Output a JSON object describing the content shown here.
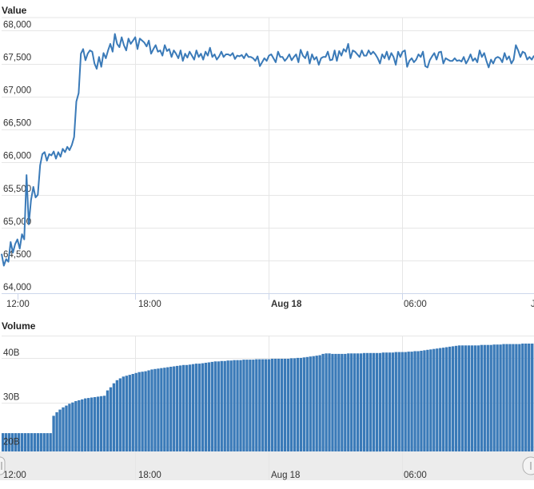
{
  "chart_data": [
    {
      "type": "line",
      "title": "Value",
      "ylim": [
        64000,
        68200
      ],
      "y_ticks": [
        64000,
        64500,
        65000,
        65500,
        66000,
        66500,
        67000,
        67500,
        68000
      ],
      "y_tick_labels": [
        "64,000",
        "64,500",
        "65,000",
        "65,500",
        "66,000",
        "66,500",
        "67,000",
        "67,500",
        "68,000"
      ],
      "x_tick_labels": [
        {
          "label": "12:00",
          "bold": false
        },
        {
          "label": "18:00",
          "bold": false
        },
        {
          "label": "Aug 18",
          "bold": true
        },
        {
          "label": "06:00",
          "bold": false
        },
        {
          "label": "J",
          "bold": false
        }
      ],
      "color": "#3a7ab8",
      "grid": true,
      "y": [
        64600,
        64420,
        64520,
        64480,
        64780,
        64620,
        64750,
        64820,
        64680,
        64900,
        64820,
        65800,
        65050,
        65420,
        65620,
        65460,
        65500,
        65950,
        66120,
        66150,
        66020,
        66120,
        66100,
        66160,
        66050,
        66150,
        66080,
        66200,
        66150,
        66230,
        66180,
        66260,
        66380,
        66920,
        67050,
        67650,
        67720,
        67550,
        67650,
        67700,
        67680,
        67500,
        67420,
        67600,
        67450,
        67660,
        67580,
        67700,
        67800,
        67680,
        67950,
        67800,
        67750,
        67900,
        67780,
        67700,
        67880,
        67800,
        67850,
        67900,
        67720,
        67880,
        67850,
        67820,
        67760,
        67850,
        67650,
        67720,
        67780,
        67680,
        67700,
        67620,
        67780,
        67690,
        67720,
        67600,
        67700,
        67650,
        67580,
        67700,
        67540,
        67650,
        67590,
        67680,
        67620,
        67560,
        67700,
        67600,
        67650,
        67560,
        67680,
        67620,
        67740,
        67600,
        67640,
        67560,
        67610,
        67680,
        67600,
        67640,
        67640,
        67620,
        67660,
        67570,
        67620,
        67610,
        67630,
        67580,
        67650,
        67600,
        67600,
        67580,
        67540,
        67610,
        67460,
        67520,
        67580,
        67540,
        67620,
        67640,
        67580,
        67520,
        67680,
        67600,
        67600,
        67540,
        67580,
        67640,
        67550,
        67600,
        67640,
        67520,
        67710,
        67620,
        67580,
        67680,
        67500,
        67640,
        67560,
        67600,
        67480,
        67580,
        67600,
        67600,
        67680,
        67550,
        67560,
        67700,
        67540,
        67690,
        67620,
        67720,
        67680,
        67800,
        67580,
        67700,
        67680,
        67640,
        67600,
        67700,
        67620,
        67620,
        67700,
        67640,
        67680,
        67640,
        67580,
        67500,
        67640,
        67580,
        67680,
        67560,
        67660,
        67600,
        67480,
        67680,
        67600,
        67680,
        67700,
        67450,
        67540,
        67580,
        67520,
        67560,
        67640,
        67600,
        67680,
        67460,
        67440,
        67550,
        67610,
        67660,
        67560,
        67670,
        67680,
        67500,
        67580,
        67560,
        67540,
        67540,
        67580,
        67540,
        67550,
        67530,
        67600,
        67500,
        67560,
        67640,
        67540,
        67580,
        67520,
        67700,
        67600,
        67660,
        67540,
        67440,
        67560,
        67500,
        67580,
        67600,
        67580,
        67520,
        67660,
        67560,
        67610,
        67500,
        67560,
        67780,
        67700,
        67600,
        67680,
        67660,
        67560,
        67600,
        67560,
        67620
      ]
    },
    {
      "type": "bar",
      "title": "Volume",
      "ylim": [
        19000,
        45000
      ],
      "y_ticks": [
        20000,
        30000,
        40000
      ],
      "y_tick_labels": [
        "20B",
        "30B",
        "40B"
      ],
      "x_tick_labels": [
        "12:00",
        "18:00",
        "Aug 18",
        "06:00"
      ],
      "color": "#3a7ab8",
      "grid": true,
      "values": [
        23100,
        23100,
        23100,
        23100,
        23100,
        23100,
        23100,
        23100,
        23100,
        23100,
        23100,
        23100,
        23100,
        23100,
        23100,
        23100,
        27000,
        27800,
        28400,
        28900,
        29300,
        29700,
        30000,
        30300,
        30500,
        30700,
        30900,
        31000,
        31100,
        31200,
        31300,
        31400,
        31500,
        32700,
        33400,
        34300,
        35000,
        35400,
        35800,
        36000,
        36200,
        36400,
        36600,
        36800,
        36900,
        37000,
        37200,
        37400,
        37500,
        37600,
        37700,
        37800,
        37900,
        38000,
        38100,
        38200,
        38300,
        38400,
        38400,
        38500,
        38600,
        38700,
        38700,
        38800,
        38900,
        39000,
        39100,
        39200,
        39200,
        39300,
        39300,
        39400,
        39400,
        39500,
        39500,
        39500,
        39600,
        39600,
        39600,
        39600,
        39700,
        39700,
        39700,
        39700,
        39700,
        39800,
        39800,
        39800,
        39800,
        39800,
        39800,
        39900,
        39900,
        40000,
        40000,
        40100,
        40200,
        40300,
        40400,
        40500,
        40600,
        40900,
        41000,
        41000,
        40900,
        40900,
        40900,
        40900,
        40900,
        41000,
        41000,
        41000,
        41000,
        41000,
        41100,
        41100,
        41100,
        41100,
        41100,
        41100,
        41200,
        41200,
        41200,
        41200,
        41300,
        41300,
        41300,
        41300,
        41400,
        41400,
        41500,
        41500,
        41600,
        41700,
        41800,
        41900,
        42000,
        42100,
        42200,
        42300,
        42400,
        42500,
        42600,
        42700,
        42800,
        42800,
        42800,
        42800,
        42800,
        42800,
        42800,
        42900,
        42900,
        42900,
        42900,
        43000,
        43000,
        43000,
        43100,
        43100,
        43100,
        43100,
        43100,
        43100,
        43200,
        43200,
        43200,
        43200
      ]
    }
  ]
}
